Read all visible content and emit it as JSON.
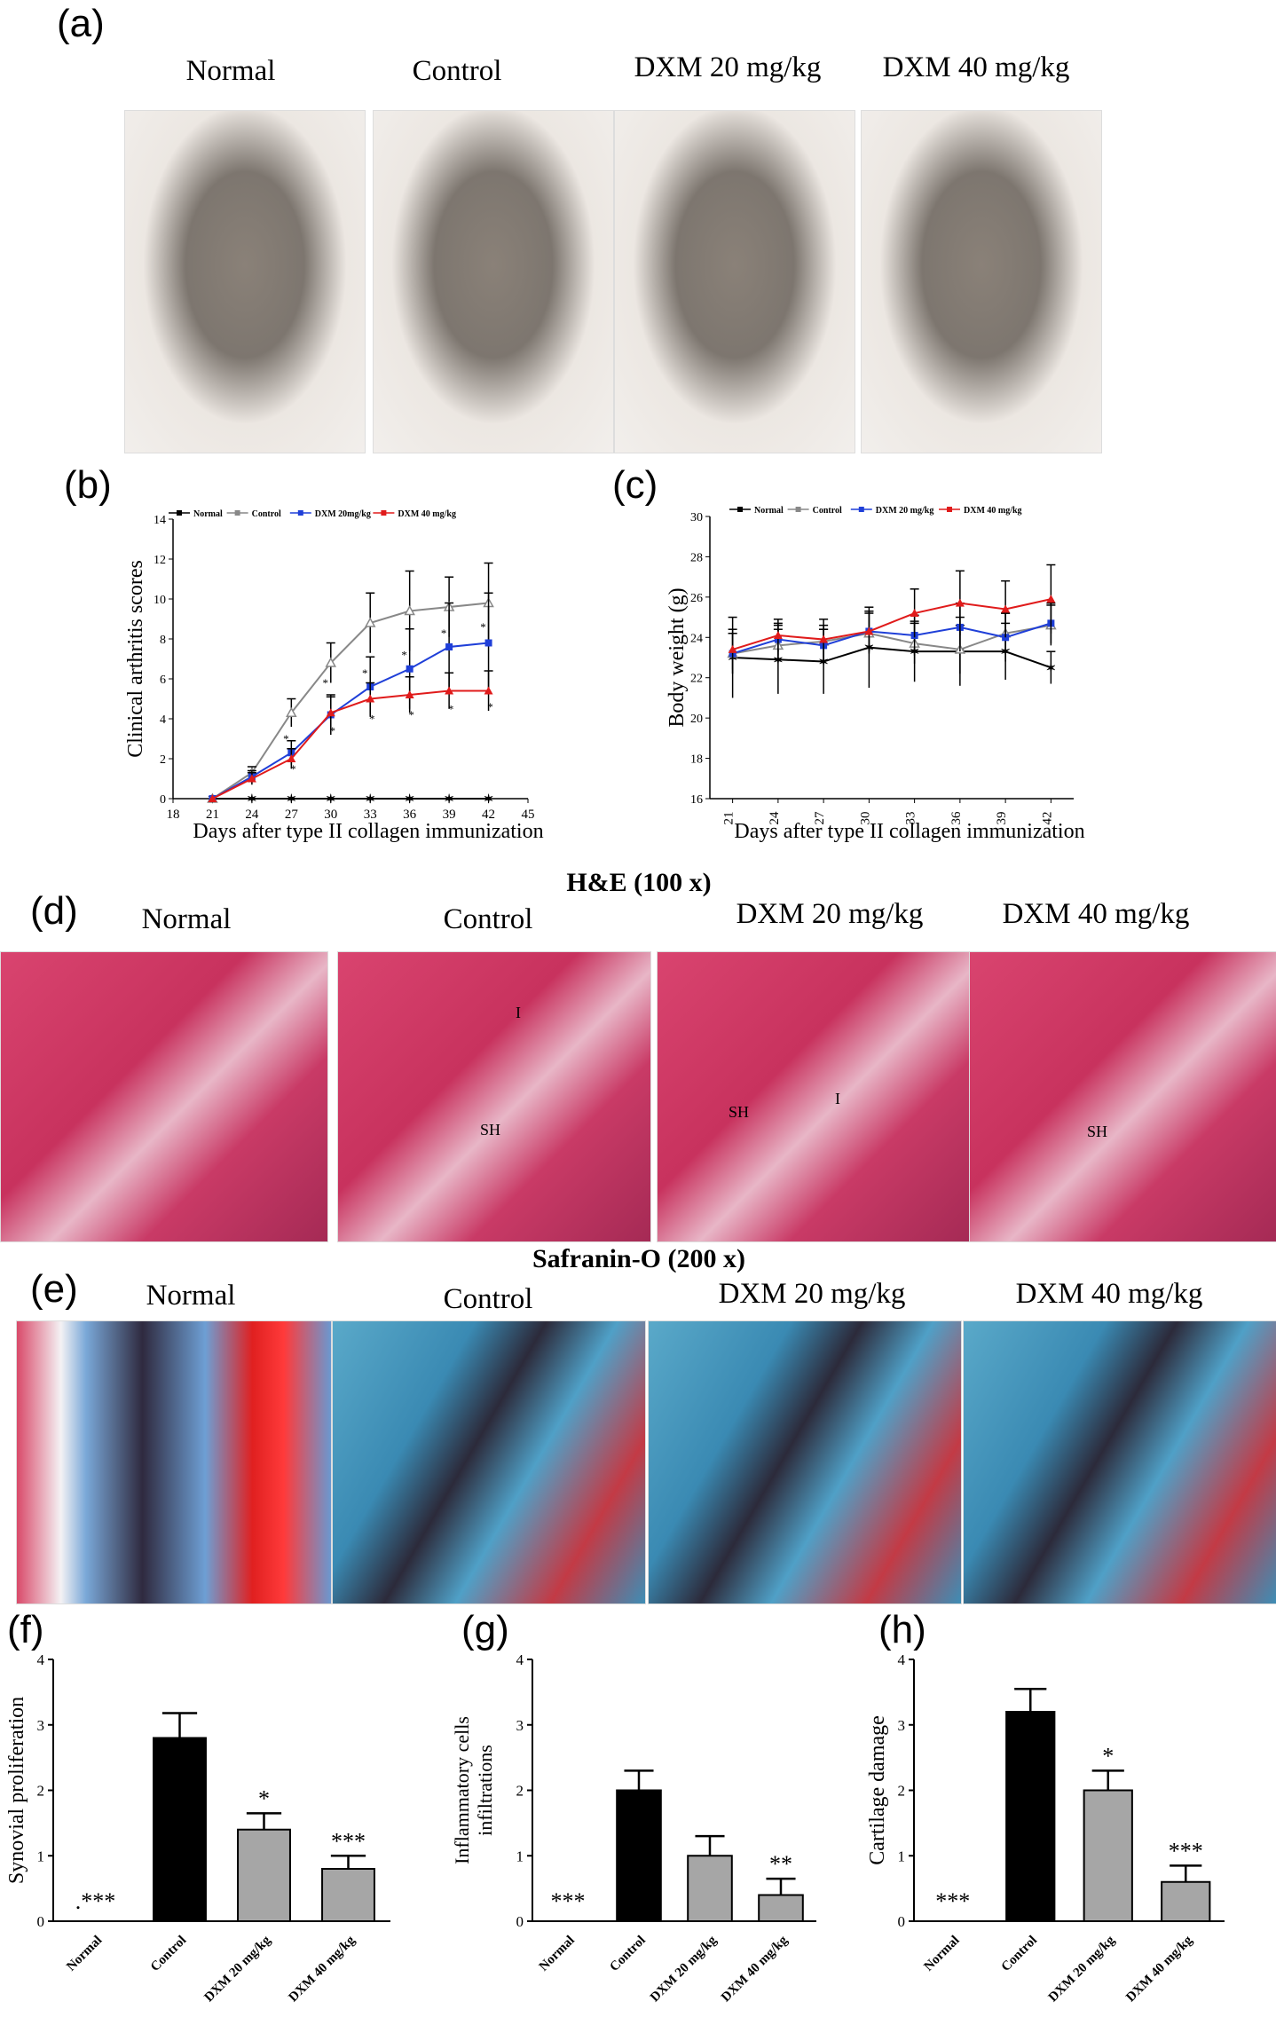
{
  "panel_letters": {
    "a": "(a)",
    "b": "(b)",
    "c": "(c)",
    "d": "(d)",
    "e": "(e)",
    "f": "(f)",
    "g": "(g)",
    "h": "(h)"
  },
  "panel_a": {
    "labels": [
      "Normal",
      "Control",
      "DXM 20 mg/kg",
      "DXM 40 mg/kg"
    ]
  },
  "panel_d": {
    "title": "H&E (100 x)",
    "labels": [
      "Normal",
      "Control",
      "DXM 20 mg/kg",
      "DXM 40 mg/kg"
    ],
    "annotations": {
      "control": [
        "I",
        "SH"
      ],
      "dxm20": [
        "SH",
        "I"
      ],
      "dxm40": [
        "SH"
      ]
    }
  },
  "panel_e": {
    "title": "Safranin-O (200 x)",
    "labels": [
      "Normal",
      "Control",
      "DXM 20 mg/kg",
      "DXM 40 mg/kg"
    ]
  },
  "colors": {
    "normal": "#000000",
    "control": "#888888",
    "dxm20": "#1f3fd8",
    "dxm40": "#e01b1b",
    "bar_control": "#000000",
    "bar_dxm": "#a6a6a6"
  },
  "chart_data": [
    {
      "id": "b",
      "type": "line",
      "xlabel": "Days after type II collagen immunization",
      "ylabel": "Clinical arthritis scores",
      "xlim": [
        18,
        45
      ],
      "ylim": [
        0,
        14
      ],
      "xticks": [
        18,
        21,
        24,
        27,
        30,
        33,
        36,
        39,
        42,
        45
      ],
      "yticks": [
        0,
        2,
        4,
        6,
        8,
        10,
        12,
        14
      ],
      "x": [
        21,
        24,
        27,
        30,
        33,
        36,
        39,
        42
      ],
      "legend_position": "top",
      "series": [
        {
          "name": "Normal",
          "values": [
            0,
            0,
            0,
            0,
            0,
            0,
            0,
            0
          ],
          "err": [
            0,
            0,
            0,
            0,
            0,
            0,
            0,
            0
          ]
        },
        {
          "name": "Control",
          "values": [
            0,
            1.3,
            4.3,
            6.8,
            8.8,
            9.4,
            9.6,
            9.8
          ],
          "err": [
            0,
            0.3,
            0.7,
            1.0,
            1.5,
            2.0,
            1.5,
            2.0
          ]
        },
        {
          "name": "DXM 20mg/kg",
          "values": [
            0,
            1.1,
            2.3,
            4.2,
            5.6,
            6.5,
            7.6,
            7.8
          ],
          "err": [
            0,
            0.3,
            0.6,
            1.0,
            1.5,
            2.0,
            2.2,
            2.5
          ]
        },
        {
          "name": "DXM 40 mg/kg",
          "values": [
            0,
            1.0,
            2.0,
            4.3,
            5.0,
            5.2,
            5.4,
            5.4
          ],
          "err": [
            0,
            0.3,
            0.5,
            0.8,
            0.8,
            0.9,
            0.9,
            1.0
          ]
        }
      ],
      "annotations": [
        "*",
        "*",
        "*",
        "*",
        "*",
        "*",
        "*",
        "*",
        "*",
        "*",
        "*",
        "*"
      ]
    },
    {
      "id": "c",
      "type": "line",
      "xlabel": "Days after type II collagen immunization",
      "ylabel": "Body weight (g)",
      "ylim": [
        16,
        30
      ],
      "xticks": [
        21,
        24,
        27,
        30,
        33,
        36,
        39,
        42
      ],
      "yticks": [
        16,
        18,
        20,
        22,
        24,
        26,
        28,
        30
      ],
      "x": [
        21,
        24,
        27,
        30,
        33,
        36,
        39,
        42
      ],
      "legend_position": "top",
      "series": [
        {
          "name": "Normal",
          "values": [
            23.0,
            22.9,
            22.8,
            23.5,
            23.3,
            23.3,
            23.3,
            22.5
          ],
          "err": [
            2.0,
            1.7,
            1.6,
            2.0,
            1.5,
            1.7,
            1.4,
            0.8
          ]
        },
        {
          "name": "Control",
          "values": [
            23.2,
            23.6,
            23.8,
            24.2,
            23.7,
            23.4,
            24.2,
            24.6
          ],
          "err": [
            1.0,
            0.8,
            0.8,
            1.0,
            1.0,
            1.2,
            1.0,
            1.0
          ]
        },
        {
          "name": "DXM 20 mg/kg",
          "values": [
            23.2,
            23.9,
            23.6,
            24.3,
            24.1,
            24.5,
            24.0,
            24.7
          ],
          "err": [
            1.0,
            0.8,
            0.8,
            1.0,
            1.0,
            1.2,
            1.2,
            1.0
          ]
        },
        {
          "name": "DXM 40 mg/kg",
          "values": [
            23.4,
            24.1,
            23.9,
            24.3,
            25.2,
            25.7,
            25.4,
            25.9
          ],
          "err": [
            1.0,
            0.8,
            1.0,
            1.0,
            1.2,
            1.6,
            1.4,
            1.7
          ]
        }
      ]
    },
    {
      "id": "f",
      "type": "bar",
      "ylabel": "Synovial proliferation",
      "ylim": [
        0,
        4
      ],
      "yticks": [
        0,
        1,
        2,
        3,
        4
      ],
      "categories": [
        "Normal",
        "Control",
        "DXM 20 mg/kg",
        "DXM 40 mg/kg"
      ],
      "values": [
        0,
        2.8,
        1.4,
        0.8
      ],
      "err": [
        0,
        0.38,
        0.25,
        0.2
      ],
      "significance": [
        ".***",
        "",
        "*",
        "***"
      ]
    },
    {
      "id": "g",
      "type": "bar",
      "ylabel": "Inflammatory cells infiltrations",
      "ylim": [
        0,
        4
      ],
      "yticks": [
        0,
        1,
        2,
        3,
        4
      ],
      "categories": [
        "Normal",
        "Control",
        "DXM 20 mg/kg",
        "DXM 40 mg/kg"
      ],
      "values": [
        0,
        2.0,
        1.0,
        0.4
      ],
      "err": [
        0,
        0.3,
        0.3,
        0.25
      ],
      "significance": [
        "***",
        "",
        "",
        "**"
      ]
    },
    {
      "id": "h",
      "type": "bar",
      "ylabel": "Cartilage damage",
      "ylim": [
        0,
        4
      ],
      "yticks": [
        0,
        1,
        2,
        3,
        4
      ],
      "categories": [
        "Normal",
        "Control",
        "DXM 20 mg/kg",
        "DXM 40 mg/kg"
      ],
      "values": [
        0,
        3.2,
        2.0,
        0.6
      ],
      "err": [
        0,
        0.35,
        0.3,
        0.25
      ],
      "significance": [
        "***",
        "",
        "*",
        "***"
      ]
    }
  ]
}
